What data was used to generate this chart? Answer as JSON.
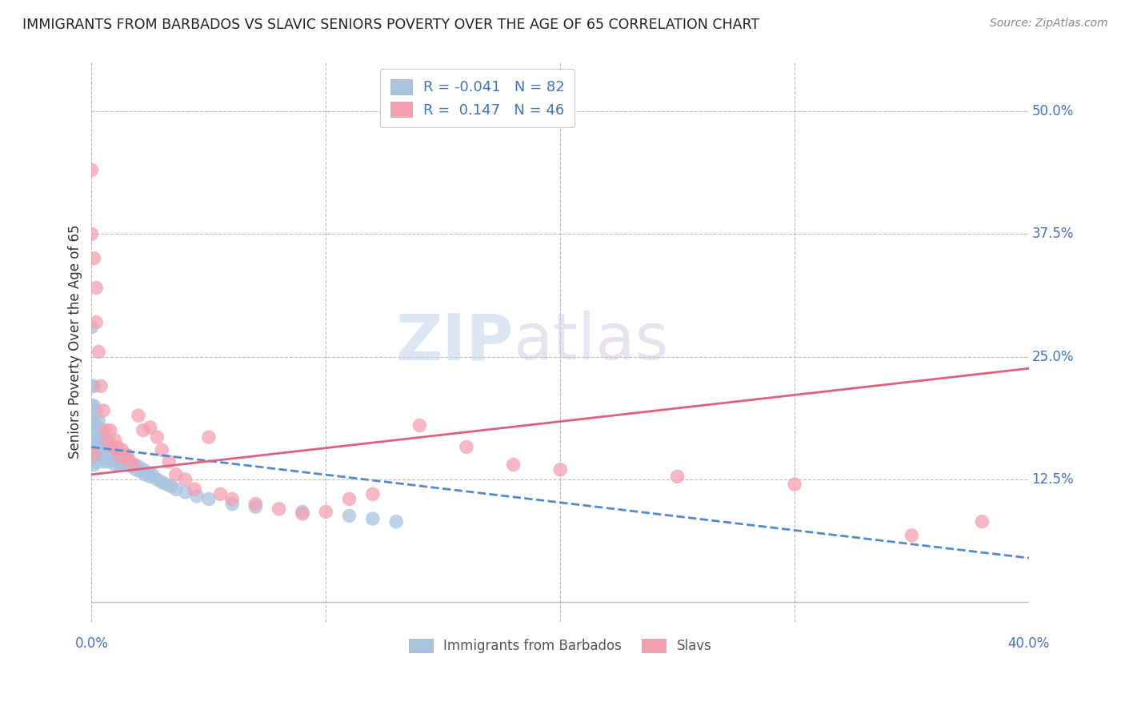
{
  "title": "IMMIGRANTS FROM BARBADOS VS SLAVIC SENIORS POVERTY OVER THE AGE OF 65 CORRELATION CHART",
  "source": "Source: ZipAtlas.com",
  "ylabel": "Seniors Poverty Over the Age of 65",
  "xlim": [
    0.0,
    0.4
  ],
  "ylim": [
    -0.02,
    0.55
  ],
  "r_barbados": -0.041,
  "n_barbados": 82,
  "r_slavs": 0.147,
  "n_slavs": 46,
  "color_barbados": "#a8c4e0",
  "color_slavs": "#f4a0b0",
  "color_barbados_line": "#5588cc",
  "color_slavs_line": "#e06080",
  "color_text_blue": "#4472c4",
  "background_color": "#ffffff",
  "grid_color": "#bbbbbb",
  "watermark_zip": "ZIP",
  "watermark_atlas": "atlas",
  "ytick_vals": [
    0.125,
    0.25,
    0.375,
    0.5
  ],
  "ytick_labels": [
    "12.5%",
    "25.0%",
    "37.5%",
    "50.0%"
  ],
  "xtick_vals": [
    0.0,
    0.1,
    0.2,
    0.3,
    0.4
  ],
  "barbados_x": [
    0.0,
    0.0,
    0.0,
    0.0,
    0.0,
    0.0,
    0.0,
    0.0,
    0.001,
    0.001,
    0.001,
    0.001,
    0.001,
    0.001,
    0.001,
    0.001,
    0.002,
    0.002,
    0.002,
    0.002,
    0.002,
    0.002,
    0.003,
    0.003,
    0.003,
    0.003,
    0.003,
    0.004,
    0.004,
    0.004,
    0.004,
    0.005,
    0.005,
    0.005,
    0.005,
    0.006,
    0.006,
    0.006,
    0.007,
    0.007,
    0.007,
    0.008,
    0.008,
    0.009,
    0.009,
    0.01,
    0.01,
    0.01,
    0.011,
    0.011,
    0.012,
    0.012,
    0.013,
    0.013,
    0.014,
    0.015,
    0.015,
    0.016,
    0.017,
    0.018,
    0.019,
    0.02,
    0.021,
    0.022,
    0.023,
    0.024,
    0.025,
    0.026,
    0.028,
    0.03,
    0.032,
    0.034,
    0.036,
    0.04,
    0.045,
    0.05,
    0.06,
    0.07,
    0.09,
    0.11,
    0.12,
    0.13
  ],
  "barbados_y": [
    0.28,
    0.22,
    0.2,
    0.19,
    0.175,
    0.165,
    0.155,
    0.148,
    0.22,
    0.2,
    0.185,
    0.175,
    0.165,
    0.155,
    0.148,
    0.14,
    0.195,
    0.18,
    0.17,
    0.16,
    0.15,
    0.143,
    0.185,
    0.172,
    0.162,
    0.153,
    0.145,
    0.175,
    0.165,
    0.155,
    0.148,
    0.168,
    0.158,
    0.15,
    0.143,
    0.162,
    0.153,
    0.146,
    0.158,
    0.15,
    0.143,
    0.155,
    0.148,
    0.152,
    0.145,
    0.155,
    0.148,
    0.14,
    0.15,
    0.143,
    0.148,
    0.14,
    0.15,
    0.142,
    0.145,
    0.148,
    0.14,
    0.143,
    0.138,
    0.14,
    0.135,
    0.138,
    0.133,
    0.135,
    0.13,
    0.132,
    0.128,
    0.13,
    0.125,
    0.122,
    0.12,
    0.118,
    0.115,
    0.112,
    0.108,
    0.105,
    0.1,
    0.097,
    0.092,
    0.088,
    0.085,
    0.082
  ],
  "slavs_x": [
    0.0,
    0.0,
    0.001,
    0.001,
    0.002,
    0.002,
    0.003,
    0.004,
    0.005,
    0.006,
    0.007,
    0.008,
    0.009,
    0.01,
    0.011,
    0.012,
    0.013,
    0.015,
    0.016,
    0.018,
    0.02,
    0.022,
    0.025,
    0.028,
    0.03,
    0.033,
    0.036,
    0.04,
    0.044,
    0.05,
    0.055,
    0.06,
    0.07,
    0.08,
    0.09,
    0.1,
    0.11,
    0.12,
    0.14,
    0.16,
    0.18,
    0.2,
    0.25,
    0.3,
    0.35,
    0.38
  ],
  "slavs_y": [
    0.44,
    0.375,
    0.35,
    0.15,
    0.32,
    0.285,
    0.255,
    0.22,
    0.195,
    0.175,
    0.165,
    0.175,
    0.158,
    0.165,
    0.158,
    0.148,
    0.155,
    0.15,
    0.145,
    0.14,
    0.19,
    0.175,
    0.178,
    0.168,
    0.155,
    0.143,
    0.13,
    0.125,
    0.115,
    0.168,
    0.11,
    0.105,
    0.1,
    0.095,
    0.09,
    0.092,
    0.105,
    0.11,
    0.18,
    0.158,
    0.14,
    0.135,
    0.128,
    0.12,
    0.068,
    0.082
  ],
  "barb_line_x0": 0.0,
  "barb_line_x1": 0.4,
  "barb_line_y0": 0.158,
  "barb_line_y1": 0.045,
  "slavs_line_x0": 0.0,
  "slavs_line_x1": 0.4,
  "slavs_line_y0": 0.13,
  "slavs_line_y1": 0.238
}
